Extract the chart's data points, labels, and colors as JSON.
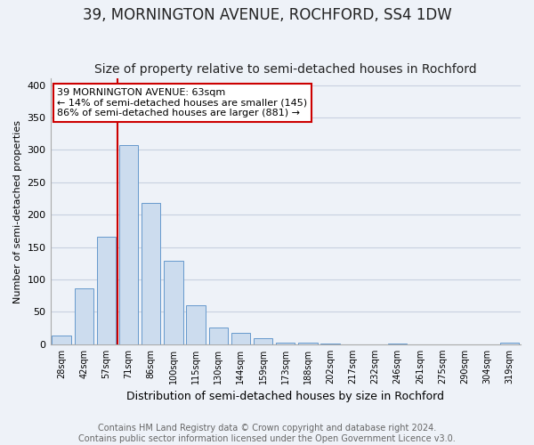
{
  "title": "39, MORNINGTON AVENUE, ROCHFORD, SS4 1DW",
  "subtitle": "Size of property relative to semi-detached houses in Rochford",
  "xlabel": "Distribution of semi-detached houses by size in Rochford",
  "ylabel": "Number of semi-detached properties",
  "bar_labels": [
    "28sqm",
    "42sqm",
    "57sqm",
    "71sqm",
    "86sqm",
    "100sqm",
    "115sqm",
    "130sqm",
    "144sqm",
    "159sqm",
    "173sqm",
    "188sqm",
    "202sqm",
    "217sqm",
    "232sqm",
    "246sqm",
    "261sqm",
    "275sqm",
    "290sqm",
    "304sqm",
    "319sqm"
  ],
  "bar_values": [
    13,
    86,
    166,
    307,
    218,
    129,
    60,
    26,
    17,
    10,
    3,
    2,
    1,
    0,
    0,
    1,
    0,
    0,
    0,
    0,
    2
  ],
  "bar_color": "#ccdcee",
  "bar_edge_color": "#6699cc",
  "vline_x": 2.5,
  "vline_color": "#cc0000",
  "annotation_title": "39 MORNINGTON AVENUE: 63sqm",
  "annotation_line1": "← 14% of semi-detached houses are smaller (145)",
  "annotation_line2": "86% of semi-detached houses are larger (881) →",
  "annotation_box_facecolor": "#ffffff",
  "annotation_box_edgecolor": "#cc0000",
  "ylim": [
    0,
    410
  ],
  "yticks": [
    0,
    50,
    100,
    150,
    200,
    250,
    300,
    350,
    400
  ],
  "bg_color": "#eef2f8",
  "plot_bg_color": "#eef2f8",
  "grid_color": "#c8d0e0",
  "title_fontsize": 12,
  "subtitle_fontsize": 10,
  "ylabel_fontsize": 8,
  "xlabel_fontsize": 9,
  "tick_fontsize": 7,
  "annot_fontsize": 8,
  "footer1": "Contains HM Land Registry data © Crown copyright and database right 2024.",
  "footer2": "Contains public sector information licensed under the Open Government Licence v3.0.",
  "footer_fontsize": 7
}
